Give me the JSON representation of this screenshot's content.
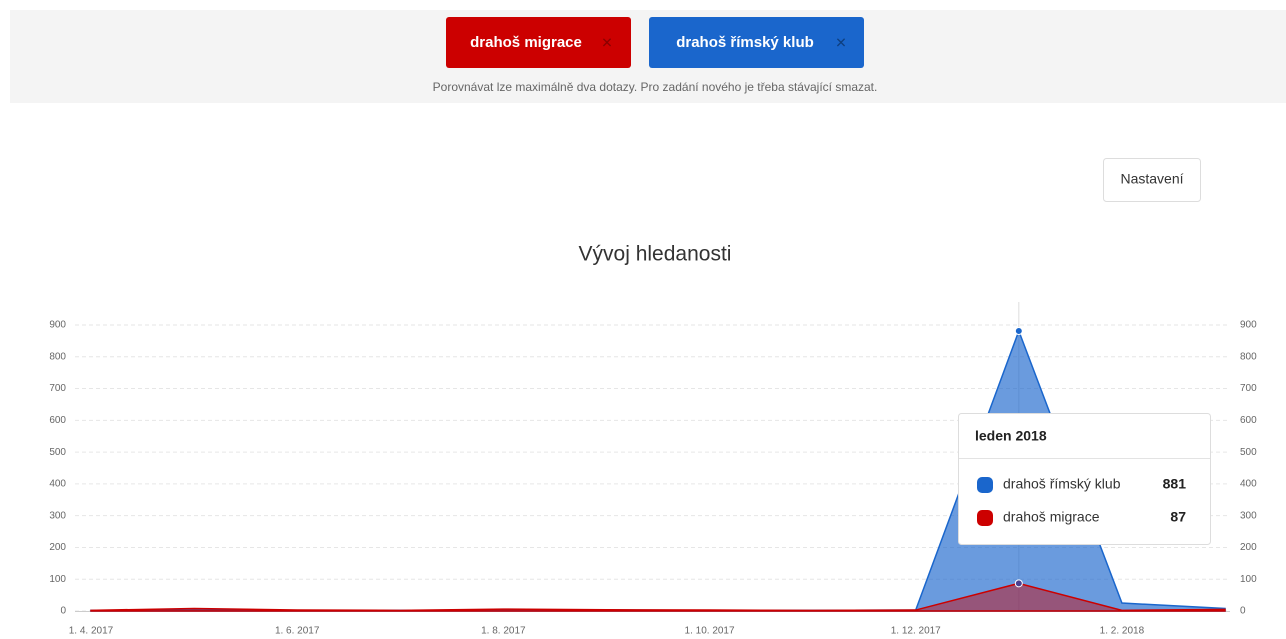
{
  "header": {
    "note": "Porovnávat lze maximálně dva dotazy. Pro zadání nového je třeba stávající smazat.",
    "close": "✕"
  },
  "button": "Nastavení",
  "chart_data": {
    "type": "area",
    "title": "Vývoj hledanosti",
    "categories": [
      "1. 4. 2017",
      null,
      "1. 6. 2017",
      null,
      "1. 8. 2017",
      null,
      "1. 10. 2017",
      null,
      "1. 12. 2017",
      null,
      "1. 2. 2018",
      null
    ],
    "series": [
      {
        "name": "drahoš římský klub",
        "color": "#1a66cc",
        "values": [
          2,
          3,
          2,
          2,
          3,
          3,
          2,
          2,
          3,
          881,
          25,
          8
        ]
      },
      {
        "name": "drahoš migrace",
        "color": "#cc0000",
        "values": [
          2,
          8,
          3,
          2,
          6,
          4,
          3,
          2,
          3,
          87,
          2,
          5
        ]
      }
    ],
    "ylim": [
      0,
      900
    ],
    "yticks": [
      0,
      100,
      200,
      300,
      400,
      500,
      600,
      700,
      800,
      900
    ],
    "y2lim": [
      0,
      900
    ],
    "y2ticks": [
      0,
      100,
      200,
      300,
      400,
      500,
      600,
      700,
      800,
      900
    ],
    "grid": true,
    "tooltip": {
      "title": "leden 2018",
      "index": 9
    }
  }
}
